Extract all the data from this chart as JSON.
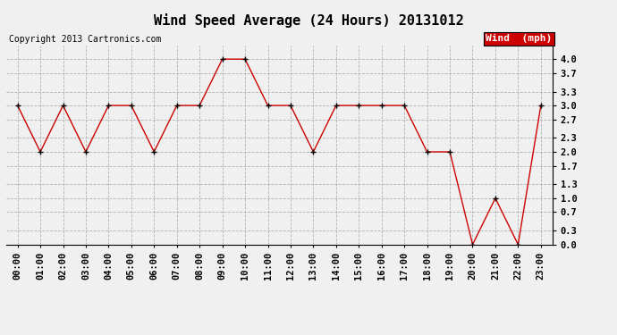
{
  "title": "Wind Speed Average (24 Hours) 20131012",
  "copyright": "Copyright 2013 Cartronics.com",
  "legend_label": "Wind  (mph)",
  "hours": [
    "00:00",
    "01:00",
    "02:00",
    "03:00",
    "04:00",
    "05:00",
    "06:00",
    "07:00",
    "08:00",
    "09:00",
    "10:00",
    "11:00",
    "12:00",
    "13:00",
    "14:00",
    "15:00",
    "16:00",
    "17:00",
    "18:00",
    "19:00",
    "20:00",
    "21:00",
    "22:00",
    "23:00"
  ],
  "values": [
    3.0,
    2.0,
    3.0,
    2.0,
    3.0,
    3.0,
    2.0,
    3.0,
    3.0,
    4.0,
    4.0,
    3.0,
    3.0,
    2.0,
    3.0,
    3.0,
    3.0,
    3.0,
    2.0,
    2.0,
    0.0,
    1.0,
    0.0,
    3.0
  ],
  "line_color": "#cc0000",
  "marker_color": "#000000",
  "bg_color": "#f0f0f0",
  "grid_color": "#aaaaaa",
  "legend_bg": "#cc0000",
  "legend_text_color": "#ffffff",
  "ylim": [
    0.0,
    4.3
  ],
  "yticks": [
    0.0,
    0.3,
    0.7,
    1.0,
    1.3,
    1.7,
    2.0,
    2.3,
    2.7,
    3.0,
    3.3,
    3.7,
    4.0
  ],
  "title_fontsize": 11,
  "copyright_fontsize": 7,
  "tick_fontsize": 7.5,
  "legend_fontsize": 8
}
